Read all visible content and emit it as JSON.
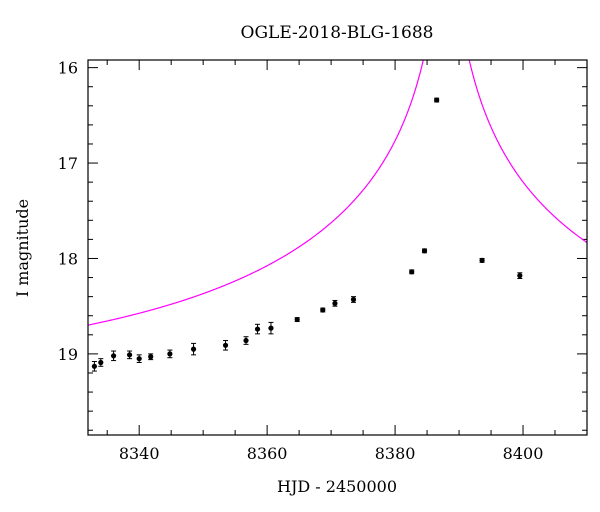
{
  "chart_data": {
    "type": "scatter",
    "title": "OGLE-2018-BLG-1688",
    "xlabel": "HJD - 2450000",
    "ylabel": "I magnitude",
    "xlim": [
      8332,
      8410
    ],
    "ylim": [
      19.85,
      15.92
    ],
    "y_inverted": true,
    "grid": false,
    "x_major_ticks": [
      8340,
      8360,
      8380,
      8400
    ],
    "x_minor_step": 5,
    "y_major_ticks": [
      16,
      17,
      18,
      19
    ],
    "y_minor_step": 0.2,
    "series": [
      {
        "kind": "points-with-errorbars",
        "color": "#000000",
        "points": [
          {
            "x": 8333.0,
            "y": 19.13,
            "err": 0.05
          },
          {
            "x": 8334.0,
            "y": 19.09,
            "err": 0.04
          },
          {
            "x": 8336.0,
            "y": 19.02,
            "err": 0.05
          },
          {
            "x": 8338.5,
            "y": 19.01,
            "err": 0.04
          },
          {
            "x": 8340.0,
            "y": 19.05,
            "err": 0.04
          },
          {
            "x": 8341.8,
            "y": 19.03,
            "err": 0.03
          },
          {
            "x": 8344.8,
            "y": 19.0,
            "err": 0.04
          },
          {
            "x": 8348.5,
            "y": 18.95,
            "err": 0.06
          },
          {
            "x": 8353.5,
            "y": 18.91,
            "err": 0.05
          },
          {
            "x": 8356.7,
            "y": 18.86,
            "err": 0.04
          },
          {
            "x": 8358.5,
            "y": 18.74,
            "err": 0.05
          },
          {
            "x": 8360.6,
            "y": 18.73,
            "err": 0.06
          },
          {
            "x": 8364.7,
            "y": 18.64,
            "err": 0.02
          },
          {
            "x": 8368.7,
            "y": 18.54,
            "err": 0.02
          },
          {
            "x": 8370.6,
            "y": 18.47,
            "err": 0.03
          },
          {
            "x": 8373.5,
            "y": 18.43,
            "err": 0.03
          },
          {
            "x": 8382.6,
            "y": 18.14,
            "err": 0.02
          },
          {
            "x": 8384.6,
            "y": 17.92,
            "err": 0.02
          },
          {
            "x": 8386.5,
            "y": 16.34,
            "err": 0.02
          },
          {
            "x": 8393.6,
            "y": 18.02,
            "err": 0.02
          },
          {
            "x": 8399.5,
            "y": 18.18,
            "err": 0.03
          }
        ]
      },
      {
        "kind": "model-curve",
        "color": "#ff00ff",
        "model": {
          "t0": 8388.0,
          "tE": 78.9,
          "u0": 0.01,
          "baseline_mag": 19.25
        }
      }
    ]
  }
}
